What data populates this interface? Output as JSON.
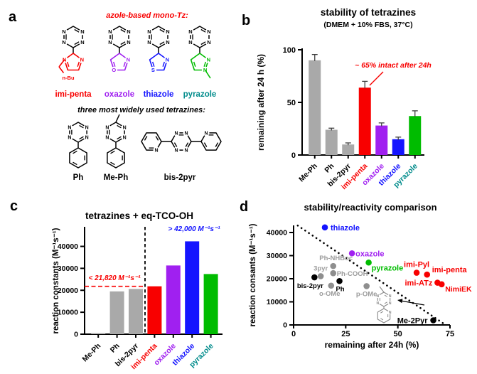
{
  "colors": {
    "red": "#f80000",
    "purple": "#a020f0",
    "blue": "#1414ff",
    "green": "#00bc00",
    "teal": "#008b8b",
    "black": "#000000",
    "gray": "#a9a9a9",
    "gray_point": "#8e8e8e",
    "gray_label": "#9b9b9b",
    "error_bar": "#3f3f3f",
    "structure_gray": "#888888"
  },
  "panel_a": {
    "letter": "a",
    "heading": "azole-based mono-Tz:",
    "heading2": "three most widely used tetrazines:",
    "atom_label": "N",
    "mono_tz": [
      {
        "name": "imi-penta",
        "color": "red",
        "label_color": "red",
        "hetero": [
          "N",
          "N"
        ],
        "substituent": "n-Bu"
      },
      {
        "name": "oxazole",
        "color": "purple",
        "label_color": "purple",
        "hetero": [
          "N",
          "O"
        ]
      },
      {
        "name": "thiazole",
        "color": "blue",
        "label_color": "blue",
        "hetero": [
          "N",
          "S"
        ]
      },
      {
        "name": "pyrazole",
        "color": "green",
        "label_color": "teal",
        "hetero": [
          "N",
          "N"
        ],
        "substituent": "methyl"
      }
    ],
    "common_tz": [
      {
        "name": "Ph"
      },
      {
        "name": "Me-Ph"
      },
      {
        "name": "bis-2pyr"
      }
    ]
  },
  "panel_b": {
    "letter": "b"
  },
  "panel_c": {
    "letter": "c"
  },
  "panel_d": {
    "letter": "d"
  },
  "chart_data": [
    {
      "id": "stability_bar",
      "type": "bar",
      "title": "stability of tetrazines",
      "subtitle": "(DMEM + 10% FBS, 37°C)",
      "ylabel": "remaining after 24 h (%)",
      "ylim": [
        0,
        100
      ],
      "yticks": [
        0,
        50,
        100
      ],
      "categories": [
        "Me-Ph",
        "Ph",
        "bis-2pyr",
        "imi-penta",
        "oxazole",
        "thiazole",
        "pyrazole"
      ],
      "values": [
        90,
        24,
        10,
        64,
        28,
        15,
        37
      ],
      "errors": [
        5.5,
        1.5,
        1.5,
        6,
        2.5,
        2,
        5
      ],
      "bar_colors": [
        "gray",
        "gray",
        "gray",
        "red",
        "purple",
        "blue",
        "green"
      ],
      "label_colors": [
        "black",
        "black",
        "black",
        "red",
        "purple",
        "blue",
        "teal"
      ],
      "annotation": {
        "text": "~ 65% intact after 24h",
        "color": "red",
        "target": "imi-penta"
      }
    },
    {
      "id": "reactivity_bar",
      "type": "bar",
      "title": "tetrazines + eq-TCO-OH",
      "ylabel": "reaction constants (M⁻¹s⁻¹)",
      "ylim": [
        0,
        46000
      ],
      "yticks": [
        0,
        10000,
        20000,
        30000,
        40000
      ],
      "categories": [
        "Me-Ph",
        "Ph",
        "bis-2pyr",
        "imi-penta",
        "oxazole",
        "thiazole",
        "pyrazole"
      ],
      "values": [
        500,
        19500,
        20600,
        21820,
        31300,
        42300,
        27400
      ],
      "bar_colors": [
        "gray",
        "gray",
        "gray",
        "red",
        "purple",
        "blue",
        "green"
      ],
      "label_colors": [
        "black",
        "black",
        "black",
        "red",
        "purple",
        "blue",
        "teal"
      ],
      "threshold_line": {
        "value": 21820,
        "color": "red",
        "label": "< 21,820 M⁻¹s⁻¹"
      },
      "divider_after_index": 2,
      "annotation_high": {
        "text": "> 42,000 M⁻¹s⁻¹",
        "color": "blue"
      }
    },
    {
      "id": "comparison_scatter",
      "type": "scatter",
      "title": "stability/reactivity comparison",
      "xlabel": "remaining after 24h (%)",
      "ylabel": "reaction consants (M⁻¹s⁻¹)",
      "xlim": [
        0,
        75
      ],
      "ylim": [
        0,
        43000
      ],
      "xticks": [
        0,
        25,
        50,
        75
      ],
      "yticks": [
        0,
        10000,
        20000,
        30000,
        40000
      ],
      "trendline": {
        "style": "dotted",
        "x1": 2,
        "y1": 43000,
        "x2": 72.9,
        "y2": 0
      },
      "points": [
        {
          "name": "thiazole",
          "x": 15,
          "y": 42200,
          "color": "blue",
          "lbl": [
            "start",
            8,
            4,
            11
          ]
        },
        {
          "name": "oxazole",
          "x": 28,
          "y": 31000,
          "color": "purple",
          "lbl": [
            "start",
            5,
            4,
            11
          ]
        },
        {
          "name": "pyrazole",
          "x": 36,
          "y": 27000,
          "color": "green",
          "lbl": [
            "start",
            4,
            11,
            11
          ]
        },
        {
          "name": "Ph-NHBoc",
          "x": 19,
          "y": 25500,
          "color": "gray_point",
          "lbl": [
            "middle",
            4,
            -8,
            9.5
          ]
        },
        {
          "name": "Ph-COOH",
          "x": 19,
          "y": 22400,
          "color": "gray_point",
          "lbl": [
            "start",
            5,
            4,
            9.5
          ]
        },
        {
          "name": "3pyr",
          "x": 13,
          "y": 21100,
          "color": "gray_point",
          "lbl": [
            "middle",
            0,
            -8,
            9.5
          ]
        },
        {
          "name": "bis-2pyr",
          "x": 10,
          "y": 20600,
          "color": "black",
          "lbl": [
            "middle",
            -6,
            15,
            9.5
          ]
        },
        {
          "name": "Ph",
          "x": 22,
          "y": 19000,
          "color": "black",
          "lbl": [
            "middle",
            1,
            14,
            9.5
          ]
        },
        {
          "name": "o-OMe",
          "x": 18,
          "y": 17000,
          "color": "gray_point",
          "lbl": [
            "middle",
            -2,
            14,
            9.5
          ]
        },
        {
          "name": "p-OMe",
          "x": 35,
          "y": 16800,
          "color": "gray_point",
          "lbl": [
            "middle",
            0,
            14,
            9.5
          ]
        },
        {
          "name": "imi-Pyl",
          "x": 59,
          "y": 22600,
          "color": "red",
          "lbl": [
            "middle",
            0,
            -8,
            11
          ]
        },
        {
          "name": "imi-penta",
          "x": 64,
          "y": 21800,
          "color": "red",
          "lbl": [
            "start",
            7,
            -3,
            11
          ]
        },
        {
          "name": "imi-ATz",
          "x": 69,
          "y": 18300,
          "color": "red",
          "lbl": [
            "end",
            -7,
            4,
            11
          ]
        },
        {
          "name": "NimiEK",
          "x": 71,
          "y": 17600,
          "color": "red",
          "lbl": [
            "start",
            5,
            10,
            10.5
          ]
        },
        {
          "name": "Me-2Pyr",
          "x": 67,
          "y": 2000,
          "color": "black",
          "lbl": [
            "end",
            -8,
            4,
            11
          ]
        }
      ],
      "inset_structure": "Me-2Pyr"
    }
  ]
}
